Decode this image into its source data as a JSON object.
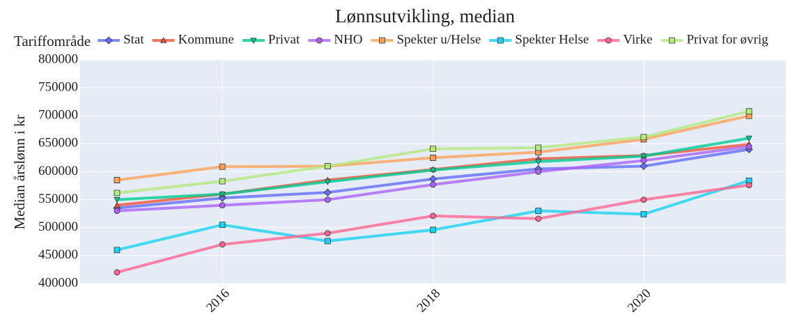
{
  "chart_data": {
    "type": "line",
    "title": "Lønnsutvikling, median",
    "y_label": "Median årslønn i kr",
    "legend_title": "Tariffområde",
    "legend_position": "top",
    "grid": true,
    "x": [
      2015,
      2016,
      2017,
      2018,
      2019,
      2020,
      2021
    ],
    "xlim": [
      2014.65,
      2021.35
    ],
    "xticks": [
      2016,
      2018,
      2020
    ],
    "ylim": [
      400000,
      800000
    ],
    "yticks": [
      400000,
      450000,
      500000,
      550000,
      600000,
      650000,
      700000,
      750000,
      800000
    ],
    "series": [
      {
        "name": "Stat",
        "color": "#636efa",
        "marker": "diamond",
        "values": [
          535000,
          553000,
          563000,
          587000,
          605000,
          610000,
          640000
        ]
      },
      {
        "name": "Kommune",
        "color": "#EF553B",
        "marker": "triangle-up",
        "values": [
          540000,
          560000,
          585000,
          604000,
          623000,
          629000,
          649000
        ]
      },
      {
        "name": "Privat",
        "color": "#00cc96",
        "marker": "triangle-down",
        "values": [
          550000,
          560000,
          582000,
          603000,
          618000,
          628000,
          660000
        ]
      },
      {
        "name": "NHO",
        "color": "#ab63fa",
        "marker": "circle",
        "values": [
          530000,
          540000,
          550000,
          577000,
          600000,
          620000,
          645000
        ]
      },
      {
        "name": "Spekter u/Helse",
        "color": "#FFA15A",
        "marker": "square",
        "values": [
          585000,
          609000,
          610000,
          625000,
          635000,
          658000,
          700000
        ]
      },
      {
        "name": "Spekter Helse",
        "color": "#19d3f3",
        "marker": "square",
        "values": [
          460000,
          505000,
          476000,
          496000,
          530000,
          524000,
          584000
        ]
      },
      {
        "name": "Virke",
        "color": "#FF6692",
        "marker": "circle",
        "values": [
          420000,
          470000,
          490000,
          521000,
          516000,
          550000,
          576000
        ]
      },
      {
        "name": "Privat for øvrig",
        "color": "#B6E880",
        "marker": "square",
        "values": [
          562000,
          583000,
          610000,
          641000,
          643000,
          662000,
          708000
        ]
      }
    ]
  }
}
